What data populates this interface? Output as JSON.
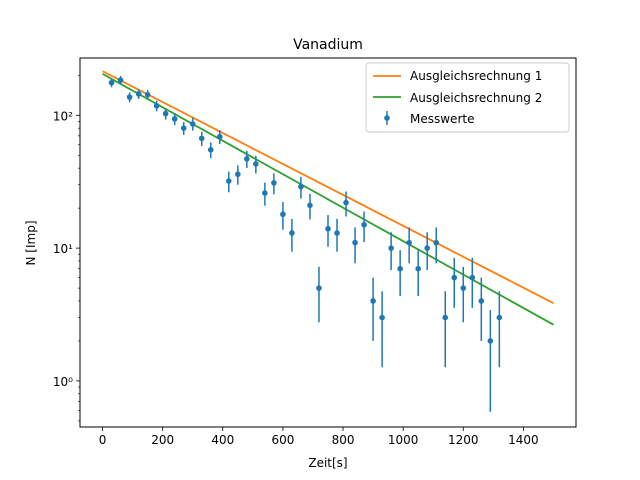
{
  "chart_data": {
    "type": "scatter",
    "title": "Vanadium",
    "xlabel": "Zeit[s]",
    "ylabel": "N [Imp]",
    "xlim": [
      -75,
      1575
    ],
    "ylim": [
      0.45,
      270
    ],
    "yscale": "log",
    "x_ticks": [
      0,
      200,
      400,
      600,
      800,
      1000,
      1200,
      1400
    ],
    "x_tick_labels": [
      "0",
      "200",
      "400",
      "600",
      "800",
      "1000",
      "1200",
      "1400"
    ],
    "y_ticks": [
      1,
      10,
      100
    ],
    "y_tick_labels": [
      "10⁰",
      "10¹",
      "10²"
    ],
    "legend": {
      "position": "upper right"
    },
    "series": [
      {
        "name": "Ausgleichsrechnung 1",
        "kind": "line",
        "color": "#ff7f0e",
        "x": [
          0,
          1500
        ],
        "y": [
          215,
          3.85
        ]
      },
      {
        "name": "Ausgleichsrechnung 2",
        "kind": "line",
        "color": "#2ca02c",
        "x": [
          0,
          1500
        ],
        "y": [
          205,
          2.65
        ]
      },
      {
        "name": "Messwerte",
        "kind": "errorbar",
        "color": "#1f77b4",
        "x": [
          30,
          60,
          90,
          120,
          150,
          180,
          210,
          240,
          270,
          300,
          330,
          360,
          390,
          420,
          450,
          480,
          510,
          540,
          570,
          600,
          630,
          660,
          690,
          720,
          750,
          780,
          810,
          840,
          870,
          900,
          930,
          960,
          990,
          1020,
          1050,
          1080,
          1110,
          1140,
          1170,
          1200,
          1230,
          1260,
          1290,
          1320
        ],
        "y": [
          176,
          184,
          137,
          145,
          143,
          118,
          103,
          94,
          80,
          86,
          67,
          55,
          69,
          32,
          36,
          47,
          43,
          26,
          31,
          18,
          13,
          29,
          21,
          5,
          14,
          13,
          22,
          11,
          15,
          4,
          3,
          10,
          7,
          11,
          7,
          10,
          11,
          3,
          6,
          5,
          6,
          4,
          2,
          3
        ]
      }
    ]
  }
}
